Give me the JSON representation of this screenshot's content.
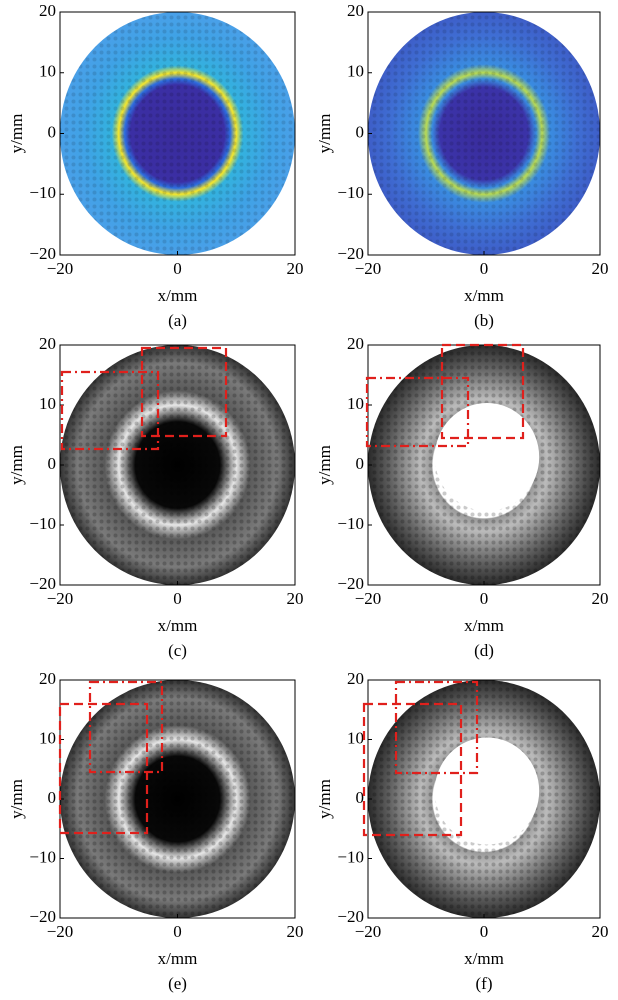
{
  "chart_data": [
    {
      "type": "image",
      "xlabel": "x/mm",
      "ylabel": "y/mm",
      "caption": "(a)",
      "xlim": [
        -20,
        20
      ],
      "ylim": [
        -20,
        20
      ],
      "xticks": [
        {
          "value": -20,
          "label": "−20"
        },
        0,
        20
      ],
      "yticks": [
        {
          "value": -20,
          "label": "−20"
        },
        {
          "value": -10,
          "label": "−10"
        },
        0,
        10,
        20
      ]
    },
    {
      "type": "image",
      "xlabel": "x/mm",
      "ylabel": "y/mm",
      "caption": "(b)",
      "xlim": [
        -20,
        20
      ],
      "ylim": [
        -20,
        20
      ],
      "xticks": [
        {
          "value": -20,
          "label": "−20"
        },
        0,
        20
      ],
      "yticks": [
        {
          "value": -20,
          "label": "−20"
        },
        {
          "value": -10,
          "label": "−10"
        },
        0,
        10,
        20
      ]
    },
    {
      "type": "image",
      "xlabel": "x/mm",
      "ylabel": "y/mm",
      "caption": "(c)",
      "xlim": [
        -20,
        20
      ],
      "ylim": [
        -20,
        20
      ],
      "xticks": [
        {
          "value": -20,
          "label": "−20"
        },
        0,
        20
      ],
      "yticks": [
        {
          "value": -20,
          "label": "−20"
        },
        {
          "value": -10,
          "label": "−10"
        },
        0,
        10,
        20
      ]
    },
    {
      "type": "image",
      "xlabel": "x/mm",
      "ylabel": "y/mm",
      "caption": "(d)",
      "xlim": [
        -20,
        20
      ],
      "ylim": [
        -20,
        20
      ],
      "xticks": [
        {
          "value": -20,
          "label": "−20"
        },
        0,
        20
      ],
      "yticks": [
        {
          "value": -20,
          "label": "−20"
        },
        {
          "value": -10,
          "label": "−10"
        },
        0,
        10,
        20
      ]
    },
    {
      "type": "image",
      "xlabel": "x/mm",
      "ylabel": "y/mm",
      "caption": "(e)",
      "xlim": [
        -20,
        20
      ],
      "ylim": [
        -20,
        20
      ],
      "xticks": [
        {
          "value": -20,
          "label": "−20"
        },
        0,
        20
      ],
      "yticks": [
        {
          "value": -20,
          "label": "−20"
        },
        {
          "value": -10,
          "label": "−10"
        },
        0,
        10,
        20
      ]
    },
    {
      "type": "image",
      "xlabel": "x/mm",
      "ylabel": "y/mm",
      "caption": "(f)",
      "xlim": [
        -20,
        20
      ],
      "ylim": [
        -20,
        20
      ],
      "xticks": [
        {
          "value": -20,
          "label": "−20"
        },
        0,
        20
      ],
      "yticks": [
        {
          "value": -20,
          "label": "−20"
        },
        {
          "value": -10,
          "label": "−10"
        },
        0,
        10,
        20
      ]
    }
  ]
}
